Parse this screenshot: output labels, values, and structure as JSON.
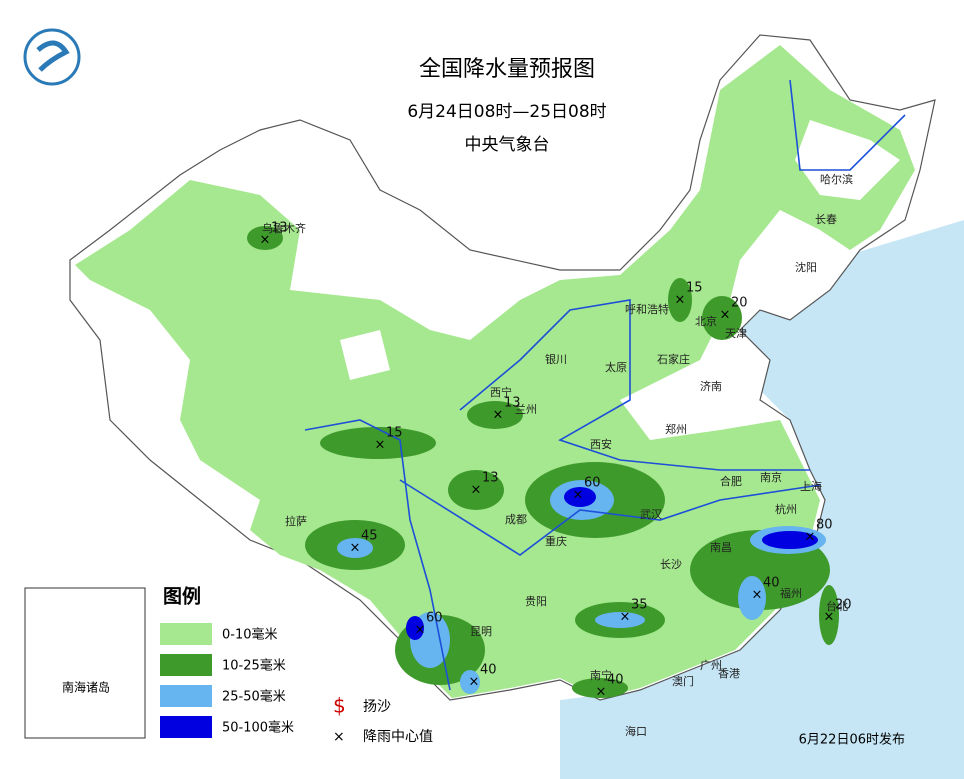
{
  "header": {
    "title": "全国降水量预报图",
    "period": "6月24日08时—25日08时",
    "agency": "中央气象台"
  },
  "legend": {
    "title": "图例",
    "items": [
      "0-10毫米",
      "10-25毫米",
      "25-50毫米",
      "50-100毫米"
    ],
    "sand": "扬沙",
    "center": "降雨中心值"
  },
  "inset": {
    "label": "南海诸岛"
  },
  "release": "6月22日06时发布",
  "cities": [
    "乌鲁木齐",
    "哈尔滨",
    "长春",
    "沈阳",
    "呼和浩特",
    "北京",
    "天津",
    "石家庄",
    "太原",
    "济南",
    "银川",
    "西宁",
    "兰州",
    "郑州",
    "西安",
    "合肥",
    "南京",
    "上海",
    "杭州",
    "武汉",
    "成都",
    "重庆",
    "长沙",
    "南昌",
    "福州",
    "贵阳",
    "昆明",
    "南宁",
    "广州",
    "香港",
    "澳门",
    "海口",
    "台北",
    "拉萨"
  ],
  "centers": [
    13,
    15,
    20,
    13,
    15,
    13,
    60,
    45,
    80,
    40,
    35,
    60,
    40,
    40,
    20
  ]
}
